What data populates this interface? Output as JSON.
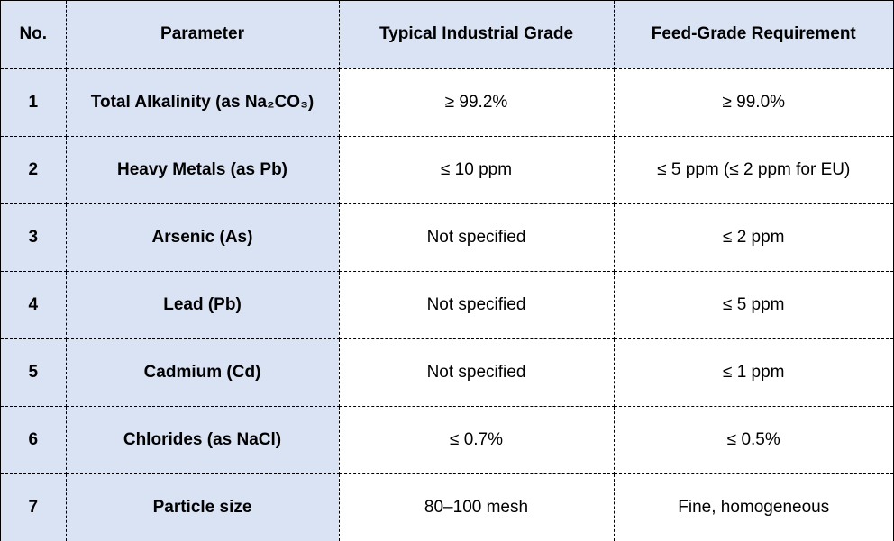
{
  "table": {
    "headers": [
      "No.",
      "Parameter",
      "Typical Industrial Grade",
      "Feed-Grade Requirement"
    ],
    "rows": [
      {
        "no": "1",
        "parameter": "Total Alkalinity (as Na₂CO₃)",
        "industrial": "≥ 99.2%",
        "feed": "≥ 99.0%"
      },
      {
        "no": "2",
        "parameter": "Heavy Metals (as Pb)",
        "industrial": "≤ 10 ppm",
        "feed": "≤ 5 ppm (≤ 2 ppm for EU)"
      },
      {
        "no": "3",
        "parameter": "Arsenic (As)",
        "industrial": "Not specified",
        "feed": "≤ 2 ppm"
      },
      {
        "no": "4",
        "parameter": "Lead (Pb)",
        "industrial": "Not specified",
        "feed": "≤ 5 ppm"
      },
      {
        "no": "5",
        "parameter": "Cadmium (Cd)",
        "industrial": "Not specified",
        "feed": "≤ 1 ppm"
      },
      {
        "no": "6",
        "parameter": "Chlorides (as NaCl)",
        "industrial": "≤ 0.7%",
        "feed": "≤ 0.5%"
      },
      {
        "no": "7",
        "parameter": "Particle size",
        "industrial": "80–100 mesh",
        "feed": "Fine, homogeneous"
      }
    ]
  },
  "colors": {
    "header_fill": "#dae3f3",
    "label_fill": "#dae3f3",
    "value_fill": "#ffffff",
    "border": "#000000"
  }
}
